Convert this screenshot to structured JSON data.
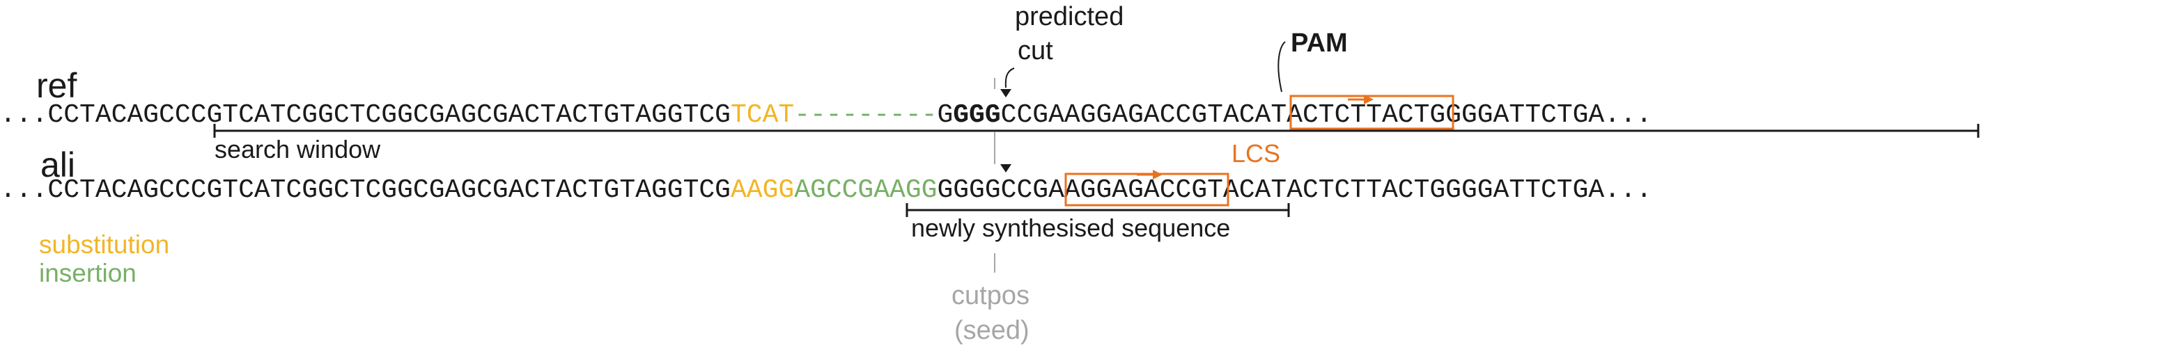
{
  "labels": {
    "ref": "ref",
    "ali": "ali",
    "predicted_cut_line1": "predicted",
    "predicted_cut_line2": "cut",
    "pam": "PAM",
    "lcs": "LCS",
    "search_window": "search window",
    "newly_synthesised": "newly synthesised sequence",
    "cutpos_line1": "cutpos",
    "cutpos_line2": "(seed)",
    "ellipsis": "..."
  },
  "legend": {
    "substitution": "substitution",
    "insertion": "insertion"
  },
  "ref_row": {
    "seg_a": "CCTACAGCCCGTCATCGGCTCGGCGAGCGACTACTGTAGGTCG",
    "seg_sub": "TCAT",
    "seg_gap": "---------",
    "seg_b": "G",
    "seg_pam": "GGG",
    "seg_lcs": "CCGAAGG",
    "seg_c": "AGACCGTACATACTCTTACTGGGGATTCTGA"
  },
  "ali_row": {
    "seg_a": "CCTACAGCCCGTCATCGGCTCGGCGAGCGACTACTGTAGGTCG",
    "seg_sub": "AAGG",
    "seg_ins_a": "A",
    "seg_ins_lcs": "GCCGAAGG",
    "seg_c": "GGGGCCGAAGGAGACCGTACATACTCTTACTGGGGATTCTGA"
  },
  "colors": {
    "substitution": "#f2b526",
    "insertion": "#78b066",
    "lcs": "#e8731f",
    "muted": "#a6a6a6",
    "text": "#1a1a1a"
  }
}
